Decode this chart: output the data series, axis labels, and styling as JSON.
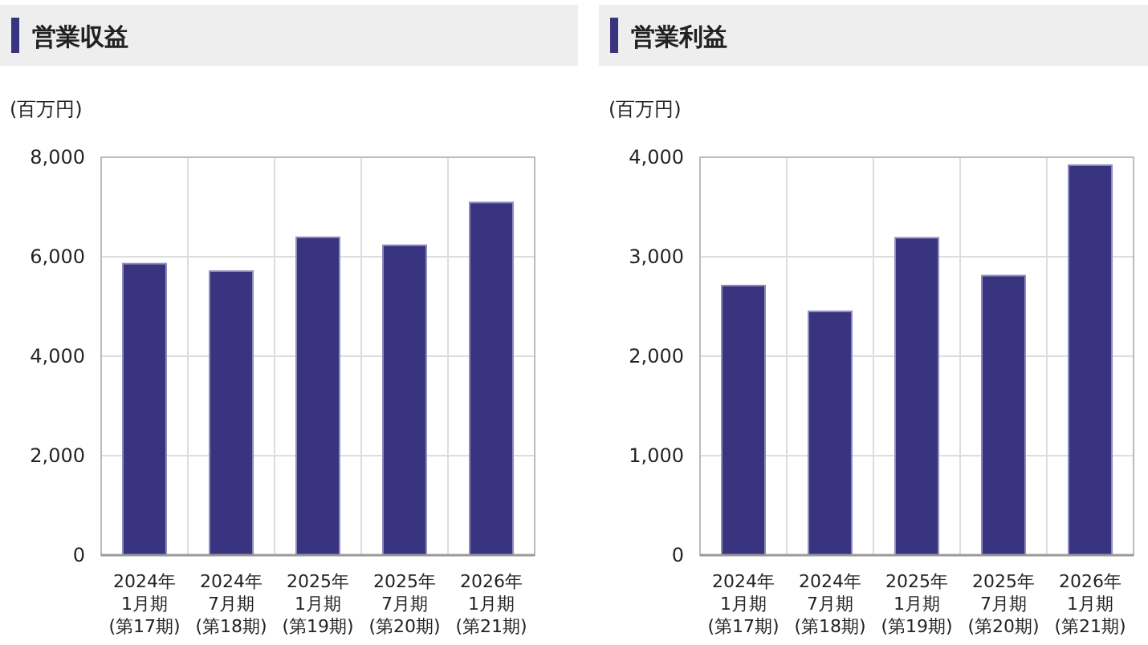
{
  "chart_data": [
    {
      "type": "bar",
      "title": "営業収益",
      "ylabel": "(百万円)",
      "categories": [
        "2024年\n1月期\n(第17期)",
        "2024年\n7月期\n(第18期)",
        "2025年\n1月期\n(第19期)",
        "2025年\n7月期\n(第20期)",
        "2026年\n1月期\n(第21期)"
      ],
      "values": [
        5860,
        5710,
        6390,
        6230,
        7090
      ],
      "color": "#39347f",
      "ylim": [
        0,
        8000
      ],
      "yticks": [
        0,
        {
          "value": 2000,
          "label": "2,000"
        },
        {
          "value": 4000,
          "label": "4,000"
        },
        {
          "value": 6000,
          "label": "6,000"
        },
        {
          "value": 8000,
          "label": "8,000"
        }
      ],
      "grid": true
    },
    {
      "type": "bar",
      "title": "営業利益",
      "ylabel": "(百万円)",
      "categories": [
        "2024年\n1月期\n(第17期)",
        "2024年\n7月期\n(第18期)",
        "2025年\n1月期\n(第19期)",
        "2025年\n7月期\n(第20期)",
        "2026年\n1月期\n(第21期)"
      ],
      "values": [
        2710,
        2450,
        3190,
        2810,
        3920
      ],
      "color": "#39347f",
      "ylim": [
        0,
        4000
      ],
      "yticks": [
        0,
        {
          "value": 1000,
          "label": "1,000"
        },
        {
          "value": 2000,
          "label": "2,000"
        },
        {
          "value": 3000,
          "label": "3,000"
        },
        {
          "value": 4000,
          "label": "4,000"
        }
      ],
      "grid": true
    }
  ]
}
